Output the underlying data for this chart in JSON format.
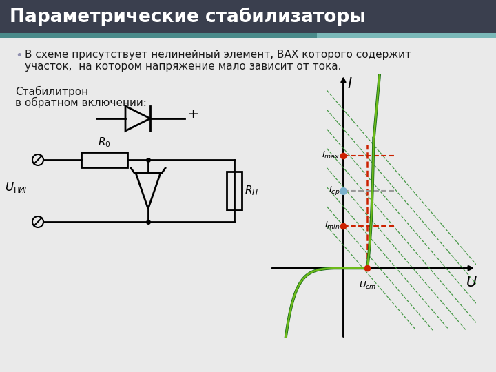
{
  "title": "Параметрические стабилизаторы",
  "title_bg_color": "#3a3f4e",
  "teal1_color": "#4a8a8a",
  "teal2_color": "#7ab8b8",
  "slide_bg_color": "#eaeaea",
  "bullet_text_line1": "В схеме присутствует нелинейный элемент, ВАХ которого содержит",
  "bullet_text_line2": "участок,  на котором напряжение мало зависит от тока.",
  "stab_label1": "Стабилитрон",
  "stab_label2": "в обратном включении:",
  "curve_dark": "#1a6e1a",
  "curve_light": "#7dc81a",
  "load_line_color": "#2a8a2a",
  "dashed_red": "#cc2200",
  "dashed_gray": "#999999",
  "dot_red": "#cc2200",
  "dot_blue": "#7ab0cc",
  "u_st": 0.72,
  "i_max": 3.2,
  "i_cp": 2.2,
  "i_min": 1.2
}
